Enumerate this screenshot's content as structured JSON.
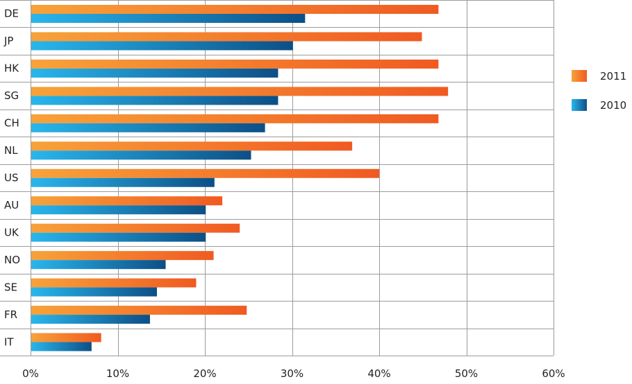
{
  "chart_data": {
    "type": "bar",
    "orientation": "horizontal",
    "categories": [
      "DE",
      "JP",
      "HK",
      "SG",
      "CH",
      "NL",
      "US",
      "AU",
      "UK",
      "NO",
      "SE",
      "FR",
      "IT"
    ],
    "series": [
      {
        "name": "2011",
        "color": "#f26522",
        "values": [
          46.8,
          44.9,
          46.8,
          47.9,
          46.8,
          36.9,
          40.0,
          22.0,
          24.0,
          21.0,
          19.0,
          24.8,
          8.1
        ]
      },
      {
        "name": "2010",
        "color": "#0f5a91",
        "values": [
          31.5,
          30.1,
          28.4,
          28.4,
          26.9,
          25.3,
          21.1,
          20.1,
          20.1,
          15.5,
          14.5,
          13.7,
          7.0
        ]
      }
    ],
    "xlim": [
      0,
      60
    ],
    "xticks": [
      "0%",
      "10%",
      "20%",
      "30%",
      "40%",
      "50%",
      "60%"
    ],
    "grid": true,
    "legend_position": "right"
  }
}
